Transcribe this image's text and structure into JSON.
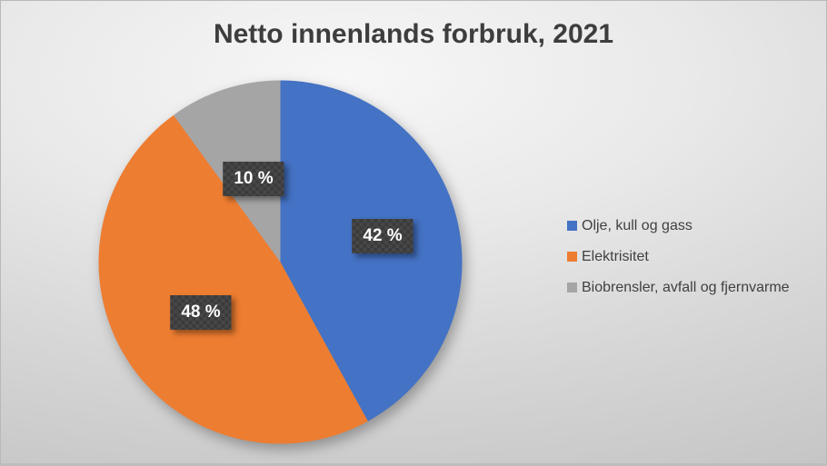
{
  "title": "Netto innenlands forbruk, 2021",
  "chart_data": {
    "type": "pie",
    "title": "Netto innenlands forbruk, 2021",
    "unit": "%",
    "start_angle_deg": 0,
    "direction": "clockwise",
    "legend_position": "right",
    "slices": [
      {
        "label": "Olje, kull og gass",
        "value": 42,
        "display": "42 %",
        "color": "#4472C4"
      },
      {
        "label": "Elektrisitet",
        "value": 48,
        "display": "48 %",
        "color": "#ED7D31"
      },
      {
        "label": "Biobrensler, avfall og fjernvarme",
        "value": 10,
        "display": "10 %",
        "color": "#A5A5A5"
      }
    ],
    "data_labels": {
      "style": "dark-checkered-plate",
      "text_color": "#FFFFFF",
      "plate_color": "#3F3F3F"
    },
    "colors": {
      "title_text": "#3D3D3D",
      "legend_text": "#404040",
      "background_light": "#F7F7F7",
      "background_dark": "#C6C6C6"
    }
  }
}
